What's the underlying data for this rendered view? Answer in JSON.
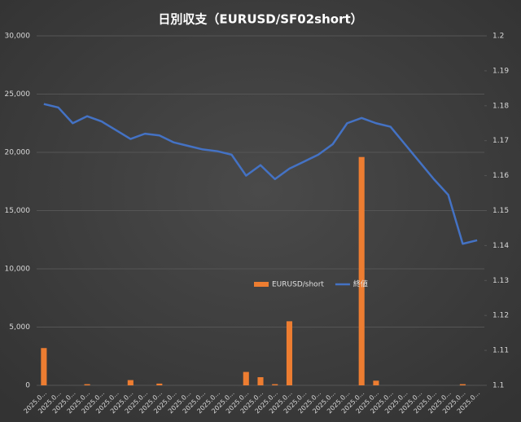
{
  "chart_data": {
    "type": "combo",
    "title": "日別収支（EURUSD/SF02short）",
    "categories": [
      "2025.0...",
      "2025.0...",
      "2025.0...",
      "2025.0...",
      "2025.0...",
      "2025.0...",
      "2025.0...",
      "2025.0...",
      "2025.0...",
      "2025.0...",
      "2025.0...",
      "2025.0...",
      "2025.0...",
      "2025.0...",
      "2025.0...",
      "2025.0...",
      "2025.0...",
      "2025.0...",
      "2025.0...",
      "2025.0...",
      "2025.0...",
      "2025.0...",
      "2025.0...",
      "2025.0...",
      "2025.0...",
      "2025.0...",
      "2025.0...",
      "2025.0...",
      "2025.0...",
      "2025.0...",
      "2025.0..."
    ],
    "series": [
      {
        "name": "EURUSD/short",
        "type": "bar",
        "axis": "y",
        "color": "#ed7d31",
        "values": [
          3200,
          0,
          0,
          100,
          0,
          0,
          450,
          0,
          150,
          0,
          0,
          0,
          0,
          0,
          1150,
          700,
          100,
          5500,
          0,
          0,
          0,
          0,
          19600,
          400,
          0,
          0,
          0,
          0,
          0,
          100,
          0
        ]
      },
      {
        "name": "終値",
        "type": "line",
        "axis": "y2",
        "color": "#4472c4",
        "values": [
          1.1805,
          1.1795,
          1.175,
          1.177,
          1.1755,
          1.173,
          1.1705,
          1.172,
          1.1715,
          1.1695,
          1.1685,
          1.1675,
          1.167,
          1.166,
          1.16,
          1.163,
          1.159,
          1.162,
          1.164,
          1.166,
          1.169,
          1.175,
          1.1765,
          1.175,
          1.174,
          1.169,
          1.164,
          1.159,
          1.1545,
          1.1405,
          1.1415
        ]
      }
    ],
    "ylim": [
      0,
      30000
    ],
    "yticks": [
      {
        "value": 0,
        "label": "0"
      },
      {
        "value": 5000,
        "label": "5,000"
      },
      {
        "value": 10000,
        "label": "10,000"
      },
      {
        "value": 15000,
        "label": "15,000"
      },
      {
        "value": 20000,
        "label": "20,000"
      },
      {
        "value": 25000,
        "label": "25,000"
      },
      {
        "value": 30000,
        "label": "30,000"
      }
    ],
    "y2lim": [
      1.1,
      1.2
    ],
    "y2ticks": [
      1.1,
      1.11,
      1.12,
      1.13,
      1.14,
      1.15,
      1.16,
      1.17,
      1.18,
      1.19,
      1.2
    ],
    "grid": true
  }
}
